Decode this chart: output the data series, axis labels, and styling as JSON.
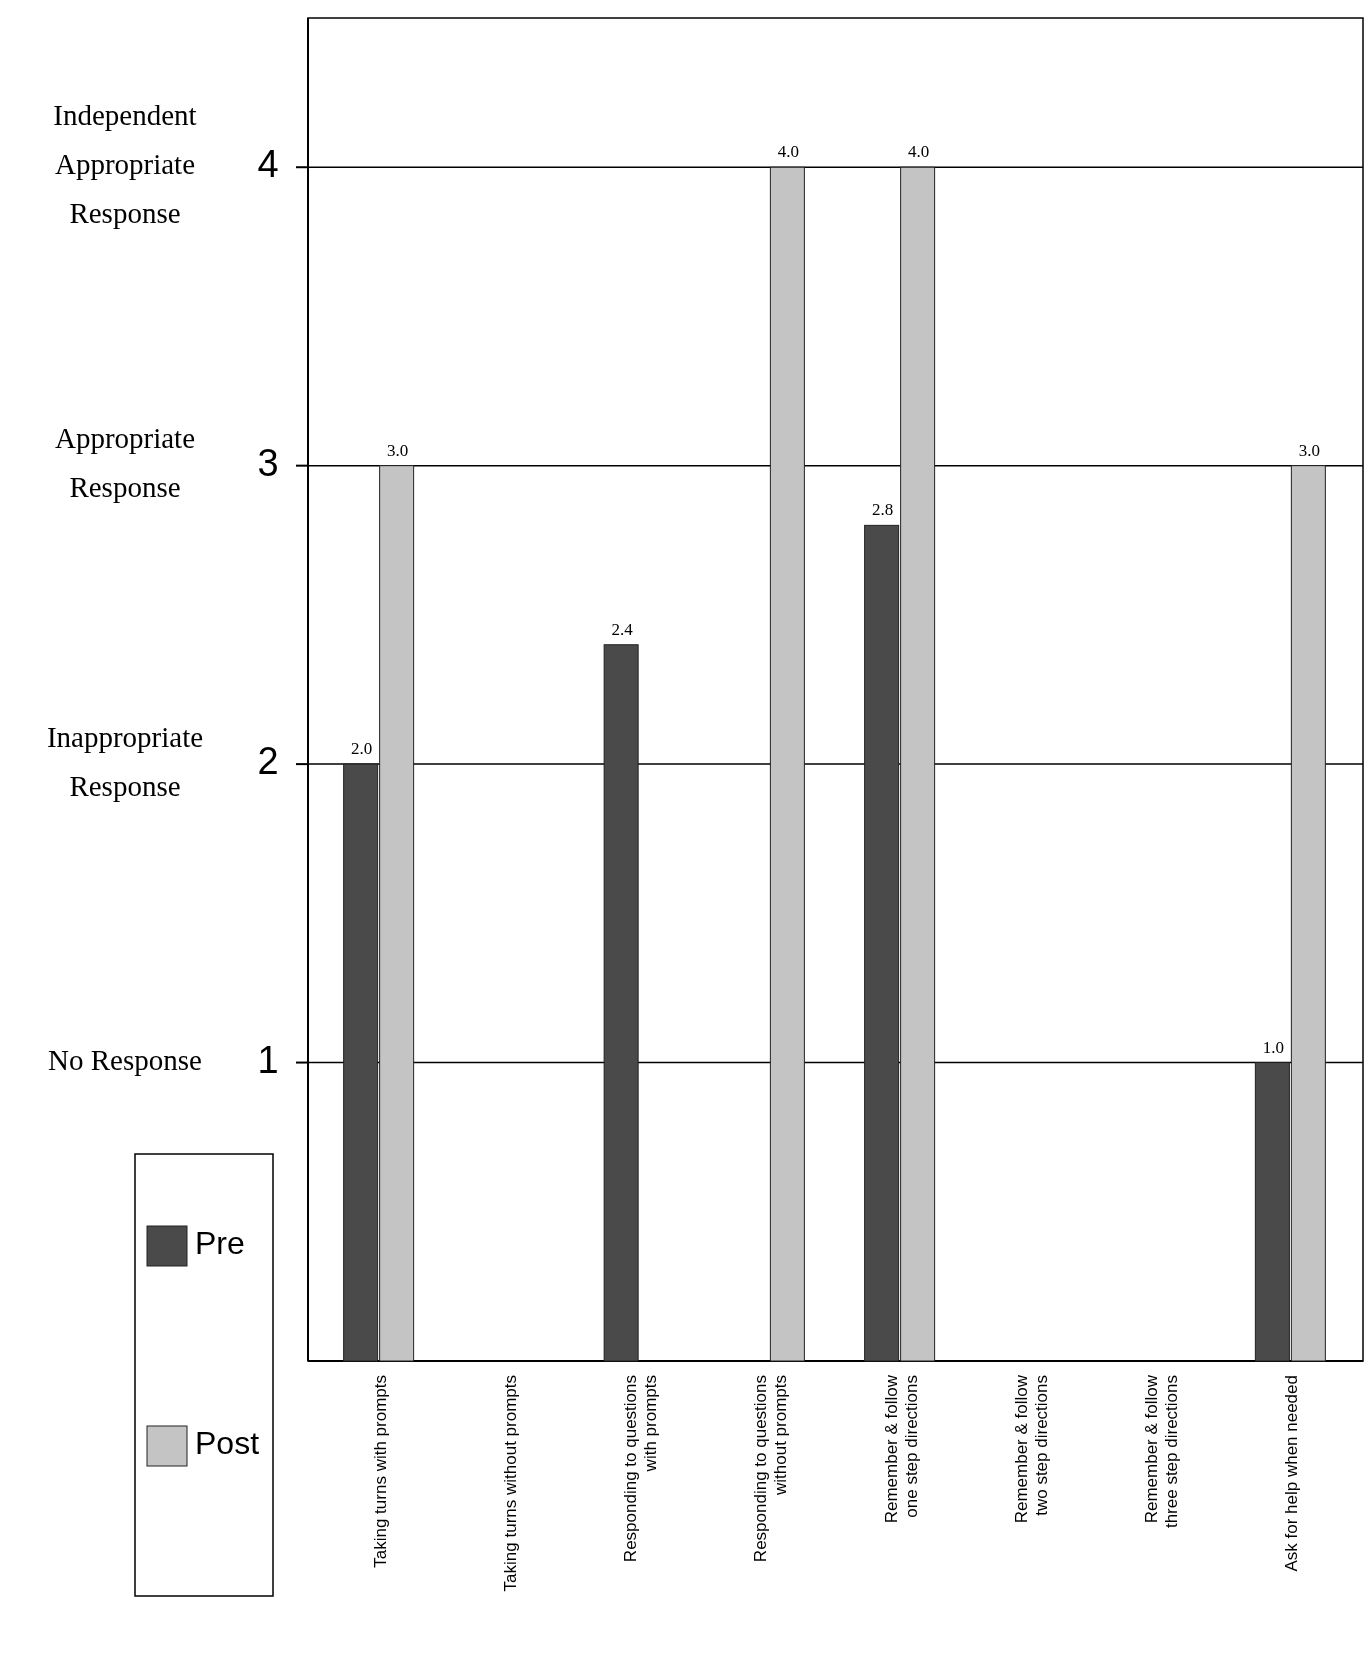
{
  "chart_data": {
    "type": "bar",
    "categories": [
      "Taking turns with prompts",
      "Taking turns without prompts",
      "Responding to questions\nwith prompts",
      "Responding to questions\nwithout prompts",
      "Remember & follow\none step directions",
      "Remember & follow\ntwo step directions",
      "Remember & follow\nthree step directions",
      "Ask for help when needed"
    ],
    "series": [
      {
        "name": "Pre",
        "color": "#4a4a4a",
        "values": [
          2.0,
          null,
          2.4,
          null,
          2.8,
          null,
          null,
          1.0
        ],
        "value_labels": [
          "2.0",
          null,
          "2.4",
          null,
          "2.8",
          null,
          null,
          "1.0"
        ]
      },
      {
        "name": "Post",
        "color": "#c4c4c4",
        "values": [
          3.0,
          null,
          null,
          4.0,
          4.0,
          null,
          null,
          3.0
        ],
        "value_labels": [
          "3.0",
          null,
          null,
          "4.0",
          "4.0",
          null,
          null,
          "3.0"
        ]
      }
    ],
    "ylim": [
      0,
      4.5
    ],
    "yticks": [
      1,
      2,
      3,
      4
    ],
    "grid": "y",
    "legend": "bottom left",
    "annotations": [
      "No Response",
      "Inappropriate\nResponse",
      "Appropriate\nResponse",
      "Independent\nAppropriate\nResponse"
    ]
  }
}
